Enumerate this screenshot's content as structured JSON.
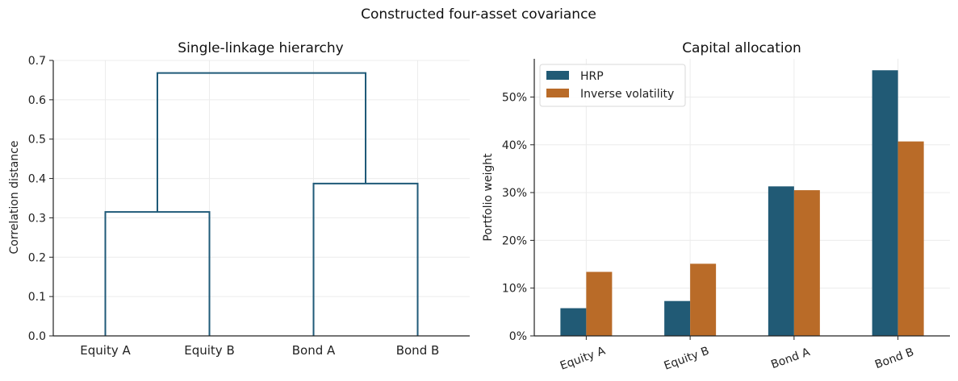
{
  "figure": {
    "title": "Constructed four-asset covariance"
  },
  "chart_data": [
    {
      "type": "dendrogram",
      "title": "Single-linkage hierarchy",
      "xlabel": "",
      "ylabel": "Correlation distance",
      "ylim": [
        0,
        0.7
      ],
      "yticks": [
        "0.0",
        "0.1",
        "0.2",
        "0.3",
        "0.4",
        "0.5",
        "0.6",
        "0.7"
      ],
      "leaves": [
        "Equity A",
        "Equity B",
        "Bond A",
        "Bond B"
      ],
      "merges": [
        {
          "left": "Equity A",
          "right": "Equity B",
          "height": 0.315
        },
        {
          "left": "Bond A",
          "right": "Bond B",
          "height": 0.387
        },
        {
          "left": "Equity A + Equity B",
          "right": "Bond A + Bond B",
          "height": 0.668
        }
      ],
      "color": "#1f5a78",
      "grid": true
    },
    {
      "type": "bar",
      "title": "Capital allocation",
      "xlabel": "",
      "ylabel": "Portfolio weight",
      "ylim": [
        0,
        0.58
      ],
      "yticks": [
        "0%",
        "10%",
        "20%",
        "30%",
        "40%",
        "50%"
      ],
      "categories": [
        "Equity A",
        "Equity B",
        "Bond A",
        "Bond B"
      ],
      "series": [
        {
          "name": "HRP",
          "values": [
            0.058,
            0.073,
            0.313,
            0.556
          ],
          "color": "#215a75"
        },
        {
          "name": "Inverse volatility",
          "values": [
            0.134,
            0.151,
            0.305,
            0.407
          ],
          "color": "#b96b28"
        }
      ],
      "legend": "top-left",
      "grid": true
    }
  ]
}
